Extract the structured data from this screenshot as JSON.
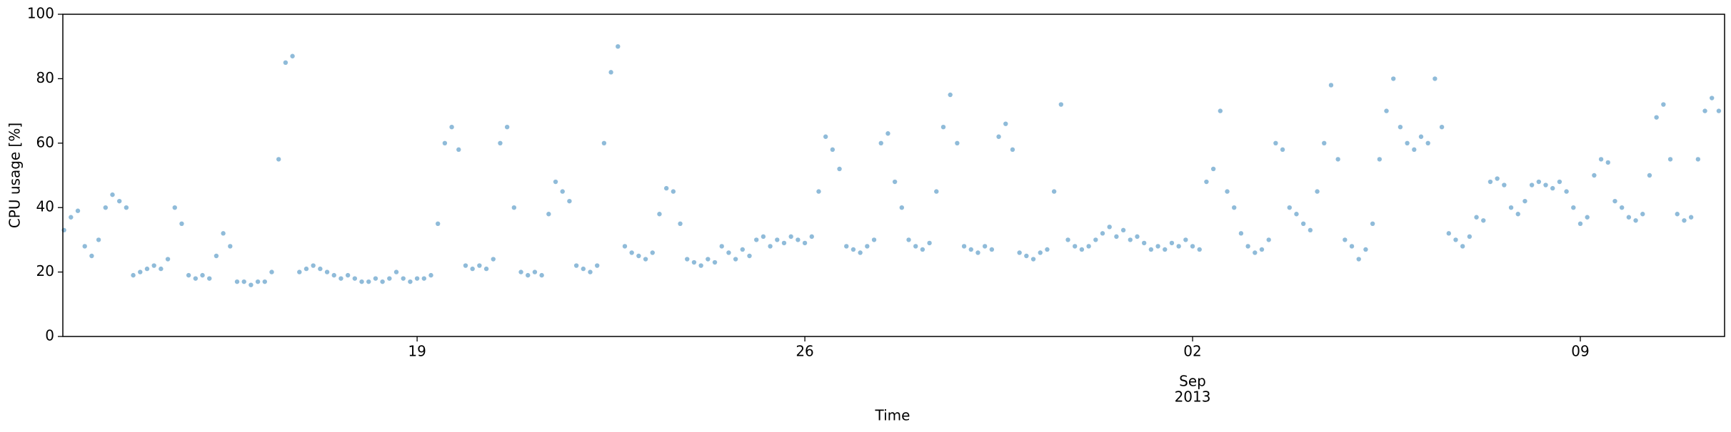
{
  "chart_data": {
    "type": "scatter",
    "xlabel": "Time",
    "ylabel": "CPU usage [%]",
    "color": "#1f77b4",
    "xlim": [
      "2013-08-12T14:30",
      "2013-09-11T14:30"
    ],
    "xticks": [
      {
        "value": "2013-08-19T00:00",
        "label": "19"
      },
      {
        "value": "2013-08-26T00:00",
        "label": "26"
      },
      {
        "value": "2013-09-02T00:00",
        "label": "02",
        "sublabel": [
          "Sep",
          "2013"
        ]
      },
      {
        "value": "2013-09-09T00:00",
        "label": "09"
      }
    ],
    "ylim": [
      0,
      100
    ],
    "yticks": [
      0,
      20,
      40,
      60,
      80,
      100
    ],
    "x": [
      "2013-08-12T15:00",
      "2013-08-12T18:00",
      "2013-08-12T21:00",
      "2013-08-13T00:00",
      "2013-08-13T03:00",
      "2013-08-13T06:00",
      "2013-08-13T09:00",
      "2013-08-13T12:00",
      "2013-08-13T15:00",
      "2013-08-13T18:00",
      "2013-08-13T21:00",
      "2013-08-14T00:00",
      "2013-08-14T03:00",
      "2013-08-14T06:00",
      "2013-08-14T09:00",
      "2013-08-14T12:00",
      "2013-08-14T15:00",
      "2013-08-14T18:00",
      "2013-08-14T21:00",
      "2013-08-15T00:00",
      "2013-08-15T03:00",
      "2013-08-15T06:00",
      "2013-08-15T09:00",
      "2013-08-15T12:00",
      "2013-08-15T15:00",
      "2013-08-15T18:00",
      "2013-08-15T21:00",
      "2013-08-16T00:00",
      "2013-08-16T03:00",
      "2013-08-16T06:00",
      "2013-08-16T09:00",
      "2013-08-16T12:00",
      "2013-08-16T15:00",
      "2013-08-16T18:00",
      "2013-08-16T21:00",
      "2013-08-17T00:00",
      "2013-08-17T03:00",
      "2013-08-17T06:00",
      "2013-08-17T09:00",
      "2013-08-17T12:00",
      "2013-08-17T15:00",
      "2013-08-17T18:00",
      "2013-08-17T21:00",
      "2013-08-18T00:00",
      "2013-08-18T03:00",
      "2013-08-18T06:00",
      "2013-08-18T09:00",
      "2013-08-18T12:00",
      "2013-08-18T15:00",
      "2013-08-18T18:00",
      "2013-08-18T21:00",
      "2013-08-19T00:00",
      "2013-08-19T03:00",
      "2013-08-19T06:00",
      "2013-08-19T09:00",
      "2013-08-19T12:00",
      "2013-08-19T15:00",
      "2013-08-19T18:00",
      "2013-08-19T21:00",
      "2013-08-20T00:00",
      "2013-08-20T03:00",
      "2013-08-20T06:00",
      "2013-08-20T09:00",
      "2013-08-20T12:00",
      "2013-08-20T15:00",
      "2013-08-20T18:00",
      "2013-08-20T21:00",
      "2013-08-21T00:00",
      "2013-08-21T03:00",
      "2013-08-21T06:00",
      "2013-08-21T09:00",
      "2013-08-21T12:00",
      "2013-08-21T15:00",
      "2013-08-21T18:00",
      "2013-08-21T21:00",
      "2013-08-22T00:00",
      "2013-08-22T03:00",
      "2013-08-22T06:00",
      "2013-08-22T09:00",
      "2013-08-22T12:00",
      "2013-08-22T15:00",
      "2013-08-22T18:00",
      "2013-08-22T21:00",
      "2013-08-23T00:00",
      "2013-08-23T03:00",
      "2013-08-23T06:00",
      "2013-08-23T09:00",
      "2013-08-23T12:00",
      "2013-08-23T15:00",
      "2013-08-23T18:00",
      "2013-08-23T21:00",
      "2013-08-24T00:00",
      "2013-08-24T03:00",
      "2013-08-24T06:00",
      "2013-08-24T09:00",
      "2013-08-24T12:00",
      "2013-08-24T15:00",
      "2013-08-24T18:00",
      "2013-08-24T21:00",
      "2013-08-25T00:00",
      "2013-08-25T03:00",
      "2013-08-25T06:00",
      "2013-08-25T09:00",
      "2013-08-25T12:00",
      "2013-08-25T15:00",
      "2013-08-25T18:00",
      "2013-08-25T21:00",
      "2013-08-26T00:00",
      "2013-08-26T03:00",
      "2013-08-26T06:00",
      "2013-08-26T09:00",
      "2013-08-26T12:00",
      "2013-08-26T15:00",
      "2013-08-26T18:00",
      "2013-08-26T21:00",
      "2013-08-27T00:00",
      "2013-08-27T03:00",
      "2013-08-27T06:00",
      "2013-08-27T09:00",
      "2013-08-27T12:00",
      "2013-08-27T15:00",
      "2013-08-27T18:00",
      "2013-08-27T21:00",
      "2013-08-28T00:00",
      "2013-08-28T03:00",
      "2013-08-28T06:00",
      "2013-08-28T09:00",
      "2013-08-28T12:00",
      "2013-08-28T15:00",
      "2013-08-28T18:00",
      "2013-08-28T21:00",
      "2013-08-29T00:00",
      "2013-08-29T03:00",
      "2013-08-29T06:00",
      "2013-08-29T09:00",
      "2013-08-29T12:00",
      "2013-08-29T15:00",
      "2013-08-29T18:00",
      "2013-08-29T21:00",
      "2013-08-30T00:00",
      "2013-08-30T03:00",
      "2013-08-30T06:00",
      "2013-08-30T09:00",
      "2013-08-30T12:00",
      "2013-08-30T15:00",
      "2013-08-30T18:00",
      "2013-08-30T21:00",
      "2013-08-31T00:00",
      "2013-08-31T03:00",
      "2013-08-31T06:00",
      "2013-08-31T09:00",
      "2013-08-31T12:00",
      "2013-08-31T15:00",
      "2013-08-31T18:00",
      "2013-08-31T21:00",
      "2013-09-01T00:00",
      "2013-09-01T03:00",
      "2013-09-01T06:00",
      "2013-09-01T09:00",
      "2013-09-01T12:00",
      "2013-09-01T15:00",
      "2013-09-01T18:00",
      "2013-09-01T21:00",
      "2013-09-02T00:00",
      "2013-09-02T03:00",
      "2013-09-02T06:00",
      "2013-09-02T09:00",
      "2013-09-02T12:00",
      "2013-09-02T15:00",
      "2013-09-02T18:00",
      "2013-09-02T21:00",
      "2013-09-03T00:00",
      "2013-09-03T03:00",
      "2013-09-03T06:00",
      "2013-09-03T09:00",
      "2013-09-03T12:00",
      "2013-09-03T15:00",
      "2013-09-03T18:00",
      "2013-09-03T21:00",
      "2013-09-04T00:00",
      "2013-09-04T03:00",
      "2013-09-04T06:00",
      "2013-09-04T09:00",
      "2013-09-04T12:00",
      "2013-09-04T15:00",
      "2013-09-04T18:00",
      "2013-09-04T21:00",
      "2013-09-05T00:00",
      "2013-09-05T03:00",
      "2013-09-05T06:00",
      "2013-09-05T09:00",
      "2013-09-05T12:00",
      "2013-09-05T15:00",
      "2013-09-05T18:00",
      "2013-09-05T21:00",
      "2013-09-06T00:00",
      "2013-09-06T03:00",
      "2013-09-06T06:00",
      "2013-09-06T09:00",
      "2013-09-06T12:00",
      "2013-09-06T15:00",
      "2013-09-06T18:00",
      "2013-09-06T21:00",
      "2013-09-07T00:00",
      "2013-09-07T03:00",
      "2013-09-07T06:00",
      "2013-09-07T09:00",
      "2013-09-07T12:00",
      "2013-09-07T15:00",
      "2013-09-07T18:00",
      "2013-09-07T21:00",
      "2013-09-08T00:00",
      "2013-09-08T03:00",
      "2013-09-08T06:00",
      "2013-09-08T09:00",
      "2013-09-08T12:00",
      "2013-09-08T15:00",
      "2013-09-08T18:00",
      "2013-09-08T21:00",
      "2013-09-09T00:00",
      "2013-09-09T03:00",
      "2013-09-09T06:00",
      "2013-09-09T09:00",
      "2013-09-09T12:00",
      "2013-09-09T15:00",
      "2013-09-09T18:00",
      "2013-09-09T21:00",
      "2013-09-10T00:00",
      "2013-09-10T03:00",
      "2013-09-10T06:00",
      "2013-09-10T09:00",
      "2013-09-10T12:00",
      "2013-09-10T15:00",
      "2013-09-10T18:00",
      "2013-09-10T21:00",
      "2013-09-11T00:00",
      "2013-09-11T03:00",
      "2013-09-11T06:00",
      "2013-09-11T09:00",
      "2013-09-11T12:00"
    ],
    "values": [
      33,
      37,
      39,
      28,
      25,
      30,
      40,
      44,
      42,
      40,
      19,
      20,
      21,
      22,
      21,
      24,
      40,
      35,
      19,
      18,
      19,
      18,
      25,
      32,
      28,
      17,
      17,
      16,
      17,
      17,
      20,
      55,
      85,
      87,
      20,
      21,
      22,
      21,
      20,
      19,
      18,
      19,
      18,
      17,
      17,
      18,
      17,
      18,
      20,
      18,
      17,
      18,
      18,
      19,
      35,
      60,
      65,
      58,
      22,
      21,
      22,
      21,
      24,
      60,
      65,
      40,
      20,
      19,
      20,
      19,
      38,
      48,
      45,
      42,
      22,
      21,
      20,
      22,
      60,
      82,
      90,
      28,
      26,
      25,
      24,
      26,
      38,
      46,
      45,
      35,
      24,
      23,
      22,
      24,
      23,
      28,
      26,
      24,
      27,
      25,
      30,
      31,
      28,
      30,
      29,
      31,
      30,
      29,
      31,
      45,
      62,
      58,
      52,
      28,
      27,
      26,
      28,
      30,
      60,
      63,
      48,
      40,
      30,
      28,
      27,
      29,
      45,
      65,
      75,
      60,
      28,
      27,
      26,
      28,
      27,
      62,
      66,
      58,
      26,
      25,
      24,
      26,
      27,
      45,
      72,
      30,
      28,
      27,
      28,
      30,
      32,
      34,
      31,
      33,
      30,
      31,
      29,
      27,
      28,
      27,
      29,
      28,
      30,
      28,
      27,
      48,
      52,
      70,
      45,
      40,
      32,
      28,
      26,
      27,
      30,
      60,
      58,
      40,
      38,
      35,
      33,
      45,
      60,
      78,
      55,
      30,
      28,
      24,
      27,
      35,
      55,
      70,
      80,
      65,
      60,
      58,
      62,
      60,
      80,
      65,
      32,
      30,
      28,
      31,
      37,
      36,
      48,
      49,
      47,
      40,
      38,
      42,
      47,
      48,
      47,
      46,
      48,
      45,
      40,
      35,
      37,
      50,
      55,
      54,
      42,
      40,
      37,
      36,
      38,
      50,
      68,
      72,
      55,
      38,
      36,
      37,
      55,
      70,
      74,
      70
    ]
  }
}
